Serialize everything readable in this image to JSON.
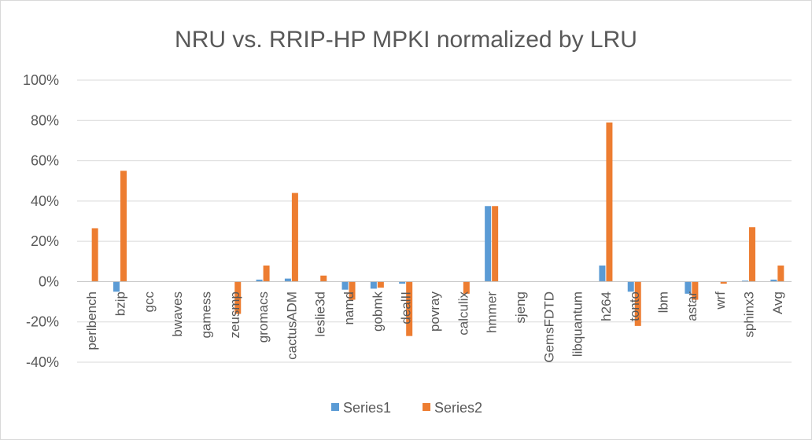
{
  "chart_data": {
    "type": "bar",
    "title": "NRU vs. RRIP-HP MPKI normalized by LRU",
    "xlabel": "",
    "ylabel": "",
    "ylim": [
      -40,
      100
    ],
    "y_ticks": [
      -40,
      -20,
      0,
      20,
      40,
      60,
      80,
      100
    ],
    "y_tick_labels": [
      "-40%",
      "-20%",
      "0%",
      "20%",
      "40%",
      "60%",
      "80%",
      "100%"
    ],
    "grid": true,
    "legend_position": "bottom",
    "categories": [
      "perlbench",
      "bzip",
      "gcc",
      "bwaves",
      "gamess",
      "zeusmp",
      "gromacs",
      "cactusADM",
      "leslie3d",
      "namd",
      "gobmk",
      "dealII",
      "povray",
      "calculix",
      "hmmer",
      "sjeng",
      "GemsFDTD",
      "libquantum",
      "h264",
      "tonto",
      "lbm",
      "astar",
      "wrf",
      "sphinx3",
      "Avg"
    ],
    "series": [
      {
        "name": "Series1",
        "color": "#5b9bd5",
        "values": [
          0,
          -5,
          0,
          0,
          0,
          0,
          1,
          1.5,
          0,
          -4,
          -3.5,
          -1,
          0,
          0,
          37.5,
          0,
          0,
          0,
          8,
          -5,
          0,
          -6,
          0,
          0.5,
          1
        ]
      },
      {
        "name": "Series2",
        "color": "#ed7d31",
        "values": [
          26.5,
          55,
          0,
          0,
          0,
          -16,
          8,
          44,
          3,
          -9,
          -3,
          -27,
          0,
          -6,
          37.5,
          0,
          0,
          0,
          79,
          -22,
          0,
          -9,
          -1,
          27,
          8
        ]
      }
    ]
  }
}
